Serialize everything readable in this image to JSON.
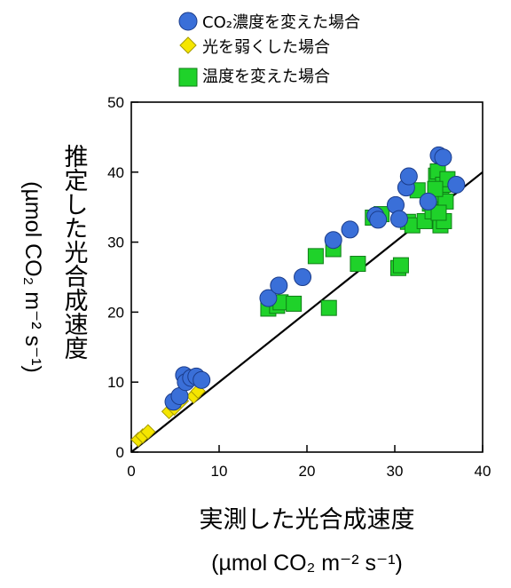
{
  "chart_data": {
    "type": "scatter",
    "xlabel": "実測した光合成速度",
    "xunit": "(µmol CO₂ m⁻² s⁻¹)",
    "ylabel": "推定した光合成速度",
    "yunit": "(µmol CO₂ m⁻² s⁻¹)",
    "xlim": [
      0,
      40
    ],
    "ylim": [
      0,
      50
    ],
    "xticks": [
      0,
      10,
      20,
      30,
      40
    ],
    "yticks": [
      0,
      10,
      20,
      30,
      40,
      50
    ],
    "reference_line": {
      "type": "1:1",
      "from": [
        0,
        0
      ],
      "to": [
        40,
        40
      ],
      "color": "#000000"
    },
    "legend_position": "top-center",
    "series": [
      {
        "name": "CO₂濃度を変えた場合",
        "marker": "circle",
        "color": "#3a6fd8",
        "points": [
          [
            4.8,
            7.2
          ],
          [
            5.5,
            8.0
          ],
          [
            6.0,
            11.0
          ],
          [
            6.2,
            10.0
          ],
          [
            6.8,
            10.6
          ],
          [
            7.4,
            10.8
          ],
          [
            8.0,
            10.3
          ],
          [
            15.6,
            22.0
          ],
          [
            16.8,
            23.8
          ],
          [
            19.5,
            25.0
          ],
          [
            23.0,
            30.3
          ],
          [
            24.9,
            31.8
          ],
          [
            27.8,
            33.8
          ],
          [
            28.1,
            33.2
          ],
          [
            30.1,
            35.3
          ],
          [
            30.5,
            33.3
          ],
          [
            31.3,
            37.8
          ],
          [
            31.6,
            39.4
          ],
          [
            33.8,
            35.8
          ],
          [
            35.0,
            42.4
          ],
          [
            35.5,
            42.1
          ],
          [
            37.0,
            38.2
          ]
        ]
      },
      {
        "name": "光を弱くした場合",
        "marker": "diamond",
        "color": "#f5e600",
        "points": [
          [
            0.8,
            1.8
          ],
          [
            1.3,
            2.3
          ],
          [
            1.9,
            2.9
          ],
          [
            4.3,
            5.8
          ],
          [
            4.9,
            6.3
          ],
          [
            5.7,
            7.3
          ],
          [
            7.1,
            8.0
          ],
          [
            7.6,
            8.7
          ]
        ]
      },
      {
        "name": "温度を変えた場合",
        "marker": "square",
        "color": "#1fd22a",
        "points": [
          [
            15.6,
            20.5
          ],
          [
            16.6,
            20.9
          ],
          [
            17.0,
            21.4
          ],
          [
            18.5,
            21.2
          ],
          [
            21.0,
            28.0
          ],
          [
            22.5,
            20.6
          ],
          [
            23.0,
            29.0
          ],
          [
            25.8,
            26.9
          ],
          [
            27.5,
            33.5
          ],
          [
            28.5,
            34.0
          ],
          [
            30.4,
            26.3
          ],
          [
            30.7,
            26.7
          ],
          [
            31.5,
            32.9
          ],
          [
            32.0,
            32.4
          ],
          [
            32.6,
            37.4
          ],
          [
            33.4,
            33.0
          ],
          [
            34.0,
            35.5
          ],
          [
            34.3,
            34.4
          ],
          [
            34.7,
            39.5
          ],
          [
            34.9,
            40.1
          ],
          [
            35.1,
            36.5
          ],
          [
            35.2,
            32.4
          ],
          [
            35.3,
            36.8
          ],
          [
            35.5,
            38.2
          ],
          [
            35.6,
            33.0
          ],
          [
            35.8,
            35.8
          ],
          [
            36.0,
            39.0
          ],
          [
            34.6,
            37.6
          ],
          [
            35.0,
            34.2
          ]
        ]
      }
    ]
  }
}
